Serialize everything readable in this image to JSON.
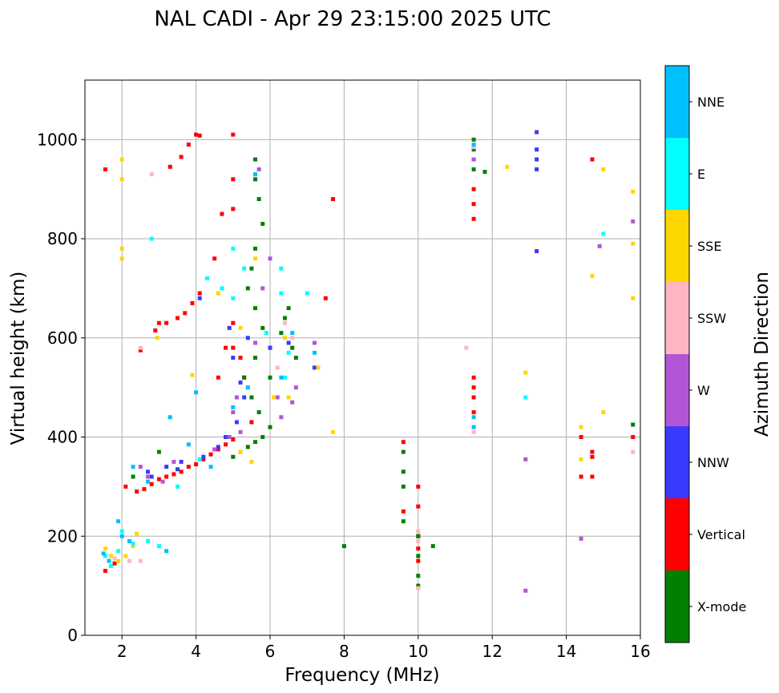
{
  "chart_data": {
    "type": "scatter",
    "title": "NAL CADI - Apr 29 23:15:00 2025 UTC",
    "xlabel": "Frequency (MHz)",
    "ylabel": "Virtual height (km)",
    "xlim": [
      1,
      16
    ],
    "ylim": [
      0,
      1120
    ],
    "xticks": [
      2,
      4,
      6,
      8,
      10,
      12,
      14,
      16
    ],
    "yticks": [
      0,
      200,
      400,
      600,
      800,
      1000
    ],
    "grid": true,
    "colorbar": {
      "label": "Azimuth Direction",
      "categories": [
        {
          "name": "X-mode",
          "color": "#008000"
        },
        {
          "name": "Vertical",
          "color": "#ff0000"
        },
        {
          "name": "NNW",
          "color": "#3a3aff"
        },
        {
          "name": "W",
          "color": "#b455d6"
        },
        {
          "name": "SSW",
          "color": "#ffb6c1"
        },
        {
          "name": "SSE",
          "color": "#ffd700"
        },
        {
          "name": "E",
          "color": "#00ffff"
        },
        {
          "name": "NNE",
          "color": "#00bfff"
        }
      ]
    },
    "series": [
      {
        "name": "Vertical",
        "points": [
          [
            1.55,
            940
          ],
          [
            1.55,
            130
          ],
          [
            1.8,
            145
          ],
          [
            2.1,
            300
          ],
          [
            2.4,
            290
          ],
          [
            2.6,
            295
          ],
          [
            2.8,
            305
          ],
          [
            3.0,
            315
          ],
          [
            3.2,
            320
          ],
          [
            3.4,
            325
          ],
          [
            3.6,
            330
          ],
          [
            3.8,
            340
          ],
          [
            4.0,
            345
          ],
          [
            4.2,
            355
          ],
          [
            4.4,
            365
          ],
          [
            4.6,
            375
          ],
          [
            4.8,
            385
          ],
          [
            5.0,
            395
          ],
          [
            2.5,
            575
          ],
          [
            2.9,
            615
          ],
          [
            3.2,
            630
          ],
          [
            3.5,
            640
          ],
          [
            3.7,
            650
          ],
          [
            3.9,
            670
          ],
          [
            4.1,
            690
          ],
          [
            4.3,
            720
          ],
          [
            4.5,
            760
          ],
          [
            3.0,
            630
          ],
          [
            3.3,
            945
          ],
          [
            3.6,
            965
          ],
          [
            3.8,
            990
          ],
          [
            4.0,
            1010
          ],
          [
            4.1,
            1008
          ],
          [
            5.0,
            1010
          ],
          [
            5.0,
            920
          ],
          [
            5.0,
            860
          ],
          [
            5.0,
            630
          ],
          [
            5.0,
            580
          ],
          [
            4.7,
            850
          ],
          [
            5.2,
            560
          ],
          [
            5.3,
            520
          ],
          [
            4.6,
            520
          ],
          [
            4.8,
            580
          ],
          [
            5.5,
            430
          ],
          [
            7.5,
            680
          ],
          [
            7.7,
            880
          ],
          [
            9.6,
            390
          ],
          [
            9.6,
            250
          ],
          [
            10.0,
            300
          ],
          [
            10.0,
            260
          ],
          [
            10.0,
            200
          ],
          [
            10.0,
            175
          ],
          [
            10.0,
            150
          ],
          [
            11.5,
            900
          ],
          [
            11.5,
            870
          ],
          [
            11.5,
            840
          ],
          [
            11.5,
            520
          ],
          [
            11.5,
            500
          ],
          [
            11.5,
            480
          ],
          [
            11.5,
            450
          ],
          [
            14.4,
            400
          ],
          [
            14.4,
            320
          ],
          [
            14.7,
            320
          ],
          [
            14.7,
            370
          ],
          [
            14.7,
            360
          ],
          [
            14.7,
            960
          ],
          [
            15.8,
            400
          ]
        ]
      },
      {
        "name": "X-mode",
        "points": [
          [
            5.0,
            360
          ],
          [
            5.2,
            370
          ],
          [
            5.4,
            380
          ],
          [
            5.6,
            390
          ],
          [
            5.8,
            400
          ],
          [
            6.0,
            420
          ],
          [
            5.7,
            450
          ],
          [
            5.5,
            480
          ],
          [
            5.3,
            520
          ],
          [
            5.6,
            560
          ],
          [
            6.0,
            580
          ],
          [
            5.8,
            620
          ],
          [
            5.6,
            660
          ],
          [
            5.4,
            700
          ],
          [
            5.5,
            740
          ],
          [
            5.6,
            780
          ],
          [
            5.8,
            830
          ],
          [
            5.7,
            880
          ],
          [
            5.6,
            920
          ],
          [
            5.6,
            960
          ],
          [
            6.0,
            520
          ],
          [
            6.3,
            610
          ],
          [
            6.4,
            640
          ],
          [
            6.5,
            660
          ],
          [
            6.6,
            580
          ],
          [
            6.7,
            560
          ],
          [
            3.0,
            370
          ],
          [
            2.3,
            320
          ],
          [
            8.0,
            180
          ],
          [
            9.6,
            370
          ],
          [
            9.6,
            330
          ],
          [
            9.6,
            300
          ],
          [
            9.6,
            230
          ],
          [
            10.0,
            200
          ],
          [
            10.0,
            160
          ],
          [
            10.0,
            120
          ],
          [
            10.0,
            100
          ],
          [
            10.4,
            180
          ],
          [
            11.5,
            1000
          ],
          [
            11.5,
            980
          ],
          [
            11.5,
            960
          ],
          [
            11.5,
            940
          ],
          [
            11.8,
            935
          ],
          [
            15.8,
            425
          ]
        ]
      },
      {
        "name": "NNW",
        "points": [
          [
            2.7,
            330
          ],
          [
            3.2,
            340
          ],
          [
            3.6,
            350
          ],
          [
            4.2,
            360
          ],
          [
            4.6,
            380
          ],
          [
            4.8,
            400
          ],
          [
            5.1,
            430
          ],
          [
            5.3,
            480
          ],
          [
            5.2,
            510
          ],
          [
            5.0,
            560
          ],
          [
            4.9,
            620
          ],
          [
            5.4,
            600
          ],
          [
            4.1,
            680
          ],
          [
            6.0,
            580
          ],
          [
            6.5,
            590
          ],
          [
            7.2,
            540
          ],
          [
            13.2,
            1015
          ],
          [
            13.2,
            980
          ],
          [
            13.2,
            960
          ],
          [
            13.2,
            940
          ],
          [
            13.2,
            775
          ],
          [
            2.8,
            320
          ],
          [
            3.5,
            335
          ]
        ]
      },
      {
        "name": "W",
        "points": [
          [
            2.5,
            340
          ],
          [
            2.7,
            320
          ],
          [
            3.1,
            310
          ],
          [
            3.4,
            350
          ],
          [
            4.5,
            375
          ],
          [
            4.9,
            400
          ],
          [
            5.0,
            450
          ],
          [
            5.2,
            410
          ],
          [
            5.1,
            480
          ],
          [
            5.6,
            590
          ],
          [
            5.8,
            700
          ],
          [
            6.0,
            760
          ],
          [
            5.7,
            940
          ],
          [
            6.2,
            480
          ],
          [
            6.3,
            440
          ],
          [
            6.6,
            470
          ],
          [
            6.7,
            500
          ],
          [
            7.2,
            590
          ],
          [
            11.5,
            960
          ],
          [
            12.9,
            355
          ],
          [
            12.9,
            90
          ],
          [
            14.4,
            195
          ],
          [
            14.9,
            785
          ],
          [
            15.8,
            835
          ]
        ]
      },
      {
        "name": "SSW",
        "points": [
          [
            2.5,
            580
          ],
          [
            2.8,
            930
          ],
          [
            1.8,
            155
          ],
          [
            2.2,
            150
          ],
          [
            2.5,
            150
          ],
          [
            6.2,
            540
          ],
          [
            6.4,
            630
          ],
          [
            6.6,
            600
          ],
          [
            11.5,
            410
          ],
          [
            11.3,
            580
          ],
          [
            10.0,
            210
          ],
          [
            10.0,
            190
          ],
          [
            10.0,
            95
          ],
          [
            11.5,
            985
          ],
          [
            15.8,
            370
          ]
        ]
      },
      {
        "name": "SSE",
        "points": [
          [
            1.55,
            175
          ],
          [
            1.7,
            160
          ],
          [
            1.9,
            150
          ],
          [
            2.1,
            160
          ],
          [
            2.3,
            180
          ],
          [
            2.4,
            205
          ],
          [
            2.0,
            960
          ],
          [
            2.0,
            920
          ],
          [
            2.0,
            780
          ],
          [
            2.0,
            760
          ],
          [
            2.95,
            600
          ],
          [
            3.9,
            525
          ],
          [
            4.6,
            690
          ],
          [
            5.2,
            620
          ],
          [
            5.6,
            760
          ],
          [
            5.2,
            370
          ],
          [
            5.5,
            350
          ],
          [
            6.1,
            480
          ],
          [
            6.4,
            600
          ],
          [
            6.5,
            480
          ],
          [
            7.3,
            540
          ],
          [
            7.7,
            410
          ],
          [
            12.4,
            945
          ],
          [
            12.9,
            530
          ],
          [
            14.4,
            355
          ],
          [
            14.4,
            420
          ],
          [
            14.7,
            725
          ],
          [
            15.0,
            940
          ],
          [
            15.0,
            450
          ],
          [
            15.8,
            895
          ],
          [
            15.8,
            790
          ],
          [
            15.8,
            680
          ]
        ]
      },
      {
        "name": "E",
        "points": [
          [
            1.55,
            160
          ],
          [
            1.7,
            140
          ],
          [
            1.9,
            170
          ],
          [
            2.0,
            210
          ],
          [
            2.3,
            185
          ],
          [
            2.7,
            190
          ],
          [
            3.0,
            180
          ],
          [
            2.8,
            800
          ],
          [
            4.3,
            720
          ],
          [
            4.7,
            700
          ],
          [
            5.0,
            680
          ],
          [
            5.0,
            780
          ],
          [
            5.3,
            740
          ],
          [
            5.9,
            610
          ],
          [
            6.3,
            740
          ],
          [
            6.3,
            690
          ],
          [
            6.4,
            520
          ],
          [
            6.5,
            570
          ],
          [
            7.0,
            690
          ],
          [
            3.5,
            300
          ],
          [
            4.1,
            355
          ],
          [
            12.9,
            480
          ],
          [
            15.0,
            810
          ]
        ]
      },
      {
        "name": "NNE",
        "points": [
          [
            1.5,
            165
          ],
          [
            1.65,
            150
          ],
          [
            1.9,
            230
          ],
          [
            2.0,
            200
          ],
          [
            2.2,
            190
          ],
          [
            2.7,
            310
          ],
          [
            3.2,
            170
          ],
          [
            3.3,
            440
          ],
          [
            3.8,
            385
          ],
          [
            4.0,
            490
          ],
          [
            4.4,
            340
          ],
          [
            5.0,
            460
          ],
          [
            5.4,
            500
          ],
          [
            5.6,
            930
          ],
          [
            6.3,
            520
          ],
          [
            6.6,
            610
          ],
          [
            7.2,
            570
          ],
          [
            11.5,
            440
          ],
          [
            11.5,
            420
          ],
          [
            11.5,
            990
          ],
          [
            2.3,
            340
          ]
        ]
      }
    ]
  }
}
